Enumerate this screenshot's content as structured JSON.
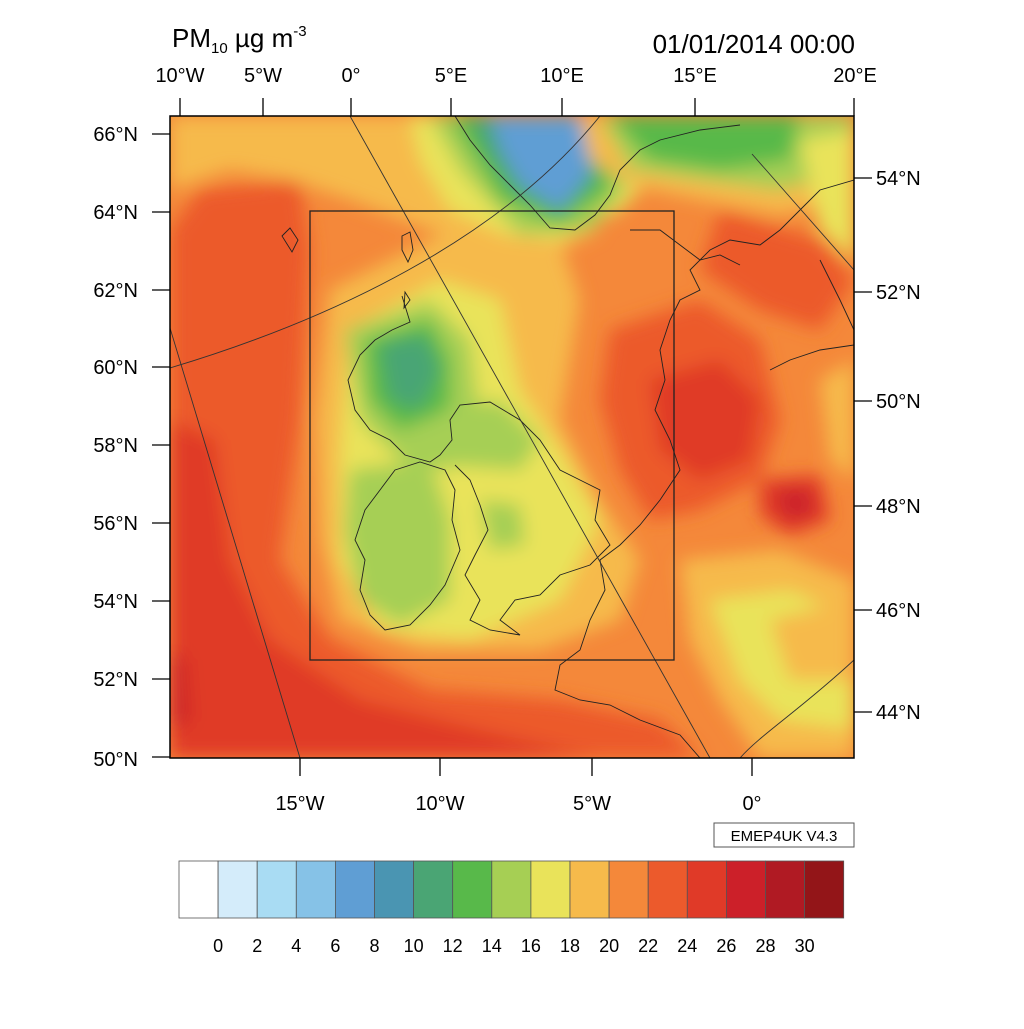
{
  "map": {
    "title": {
      "main": "PM",
      "subscript": "10",
      "unit": " µg m",
      "exponent": "-3"
    },
    "timestamp": "01/01/2014 00:00",
    "model_label": "EMEP4UK V4.3",
    "top_lon_labels": [
      "10°W",
      "5°W",
      "0°",
      "5°E",
      "10°E",
      "15°E",
      "20°E"
    ],
    "bottom_lon_labels": [
      "15°W",
      "10°W",
      "5°W",
      "0°"
    ],
    "left_lat_labels": [
      "66°N",
      "64°N",
      "62°N",
      "60°N",
      "58°N",
      "56°N",
      "54°N",
      "52°N",
      "50°N"
    ],
    "right_lat_labels": [
      "54°N",
      "52°N",
      "50°N",
      "48°N",
      "46°N",
      "44°N"
    ]
  },
  "colorbar": {
    "labels": [
      "0",
      "2",
      "4",
      "6",
      "8",
      "10",
      "12",
      "14",
      "16",
      "18",
      "20",
      "22",
      "24",
      "26",
      "28",
      "30"
    ],
    "colors": [
      "#ffffff",
      "#d4ecfa",
      "#a9dcf3",
      "#86c2e7",
      "#5f9ed4",
      "#4a95b2",
      "#4aa574",
      "#58b94a",
      "#a6cf54",
      "#e9e35a",
      "#f6ba4b",
      "#f4883a",
      "#ec5a2c",
      "#e03a28",
      "#cc2029",
      "#b01a23",
      "#931518"
    ]
  }
}
